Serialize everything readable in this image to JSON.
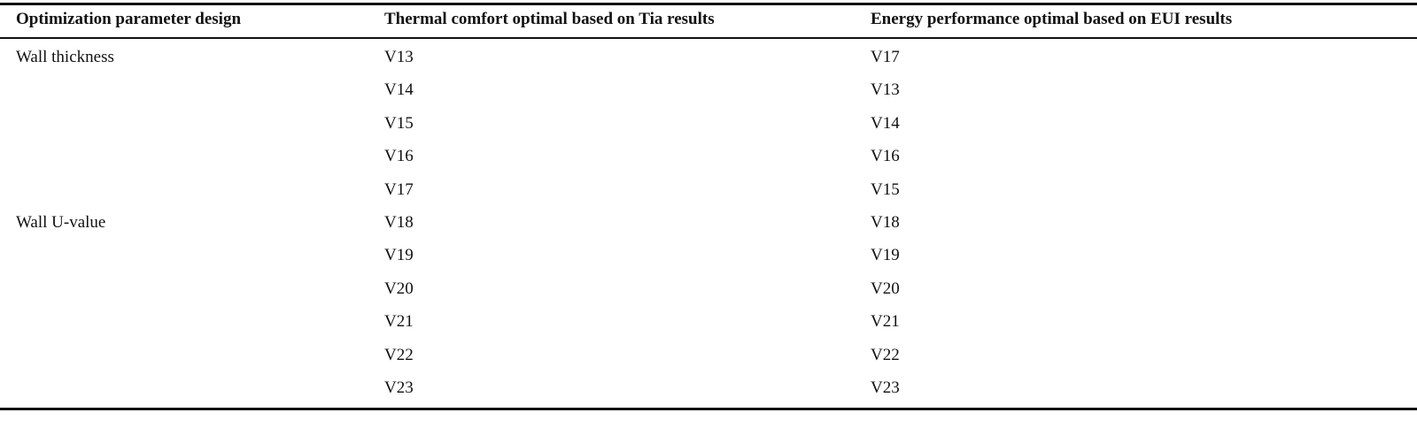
{
  "table": {
    "header": [
      "Optimization parameter design",
      "Thermal comfort optimal based on Tia results",
      "Energy performance optimal based on EUI results"
    ],
    "groups": [
      {
        "label": "Wall thickness",
        "rows": [
          [
            "V13",
            "V17"
          ],
          [
            "V14",
            "V13"
          ],
          [
            "V15",
            "V14"
          ],
          [
            "V16",
            "V16"
          ],
          [
            "V17",
            "V15"
          ]
        ]
      },
      {
        "label": "Wall U-value",
        "rows": [
          [
            "V18",
            "V18"
          ],
          [
            "V19",
            "V19"
          ],
          [
            "V20",
            "V20"
          ],
          [
            "V21",
            "V21"
          ],
          [
            "V22",
            "V22"
          ],
          [
            "V23",
            "V23"
          ]
        ]
      }
    ]
  }
}
